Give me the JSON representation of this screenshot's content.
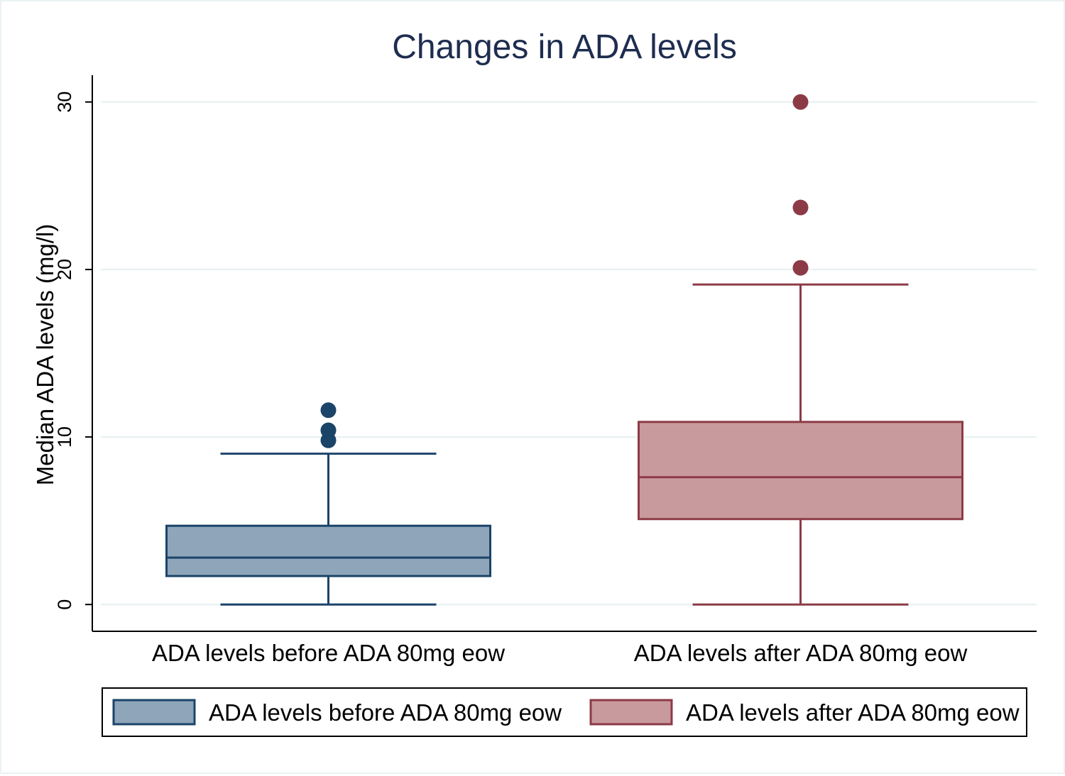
{
  "chart_data": {
    "type": "box",
    "title": "Changes in ADA levels",
    "ylabel": "Median ADA levels (mg/l)",
    "xlabel": "",
    "ylim": [
      -1.6,
      31.6
    ],
    "yticks": [
      0,
      10,
      20,
      30
    ],
    "grid": true,
    "legend_position": "bottom",
    "categories": [
      "ADA levels before ADA 80mg eow",
      "ADA levels after ADA 80mg eow"
    ],
    "series": [
      {
        "name": "ADA levels before ADA 80mg eow",
        "whisker_low": 0,
        "q1": 1.7,
        "median": 2.8,
        "q3": 4.7,
        "whisker_high": 9.0,
        "outliers": [
          9.8,
          10.4,
          11.6
        ],
        "color": "#8ea5ba",
        "line_color": "#1b4469"
      },
      {
        "name": "ADA levels after ADA 80mg eow",
        "whisker_low": 0,
        "q1": 5.1,
        "median": 7.6,
        "q3": 10.9,
        "whisker_high": 19.1,
        "outliers": [
          20.1,
          23.7,
          30.0
        ],
        "color": "#c99a9d",
        "line_color": "#8c3b46"
      }
    ]
  },
  "colors": {
    "title": "#1e2d4f",
    "grid": "#eaf2f3",
    "axis": "#000000"
  }
}
